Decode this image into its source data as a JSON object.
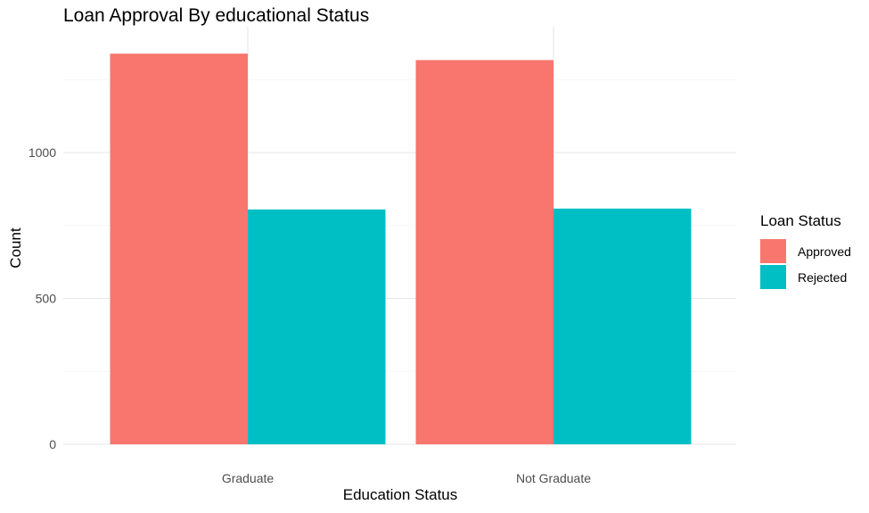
{
  "chart_data": {
    "type": "bar",
    "title": "Loan Approval By educational Status",
    "xlabel": "Education Status",
    "ylabel": "Count",
    "categories": [
      "Graduate",
      "Not Graduate"
    ],
    "series": [
      {
        "name": "Approved",
        "values": [
          1339,
          1317
        ],
        "color": "#F8766D"
      },
      {
        "name": "Rejected",
        "values": [
          805,
          808
        ],
        "color": "#00BFC4"
      }
    ],
    "ylim": [
      0,
      1400
    ],
    "yticks": [
      0,
      500,
      1000
    ],
    "grid": true,
    "legend": {
      "title": "Loan Status",
      "position": "right"
    }
  }
}
